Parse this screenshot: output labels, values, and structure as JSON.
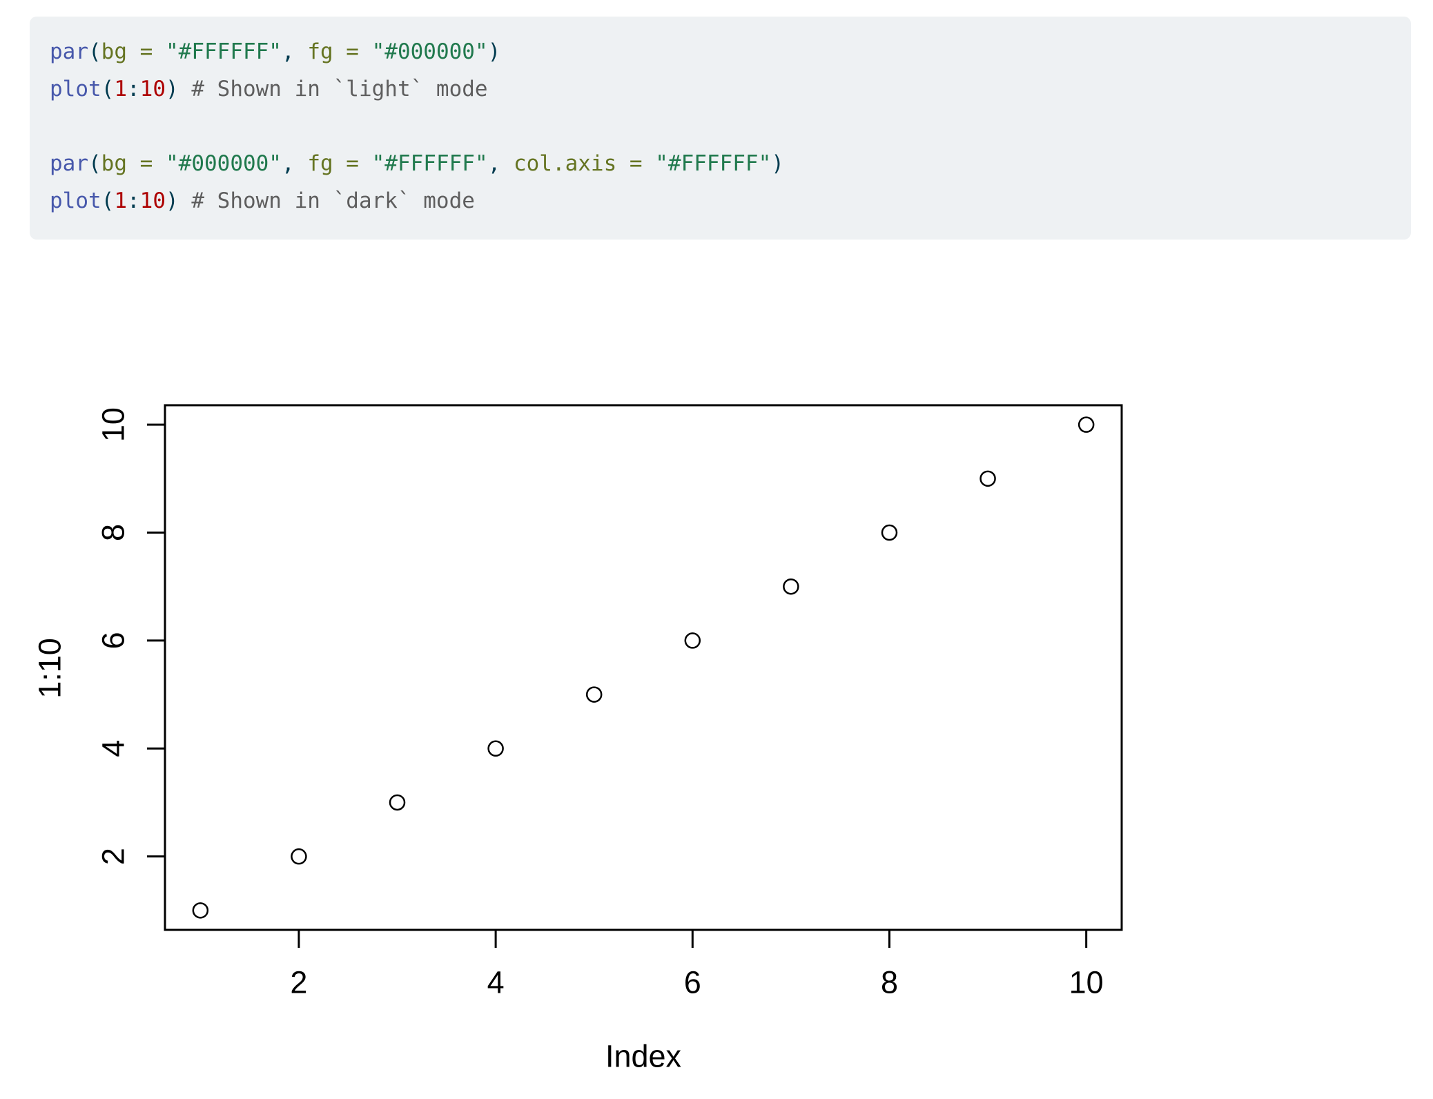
{
  "page": {
    "background": "#FFFFFF"
  },
  "code_block": {
    "background": "#EEF1F3",
    "palette": {
      "fu": "#4758AB",
      "ot": "#003B4F",
      "at": "#657422",
      "st": "#20794D",
      "dv": "#AD0000",
      "co": "#5E5E5E"
    },
    "lines": [
      [
        {
          "c": "fu",
          "t": "par"
        },
        {
          "c": "ot",
          "t": "("
        },
        {
          "c": "at",
          "t": "bg ="
        },
        {
          "c": "ot",
          "t": " "
        },
        {
          "c": "st",
          "t": "\"#FFFFFF\""
        },
        {
          "c": "ot",
          "t": ", "
        },
        {
          "c": "at",
          "t": "fg ="
        },
        {
          "c": "ot",
          "t": " "
        },
        {
          "c": "st",
          "t": "\"#000000\""
        },
        {
          "c": "ot",
          "t": ")"
        }
      ],
      [
        {
          "c": "fu",
          "t": "plot"
        },
        {
          "c": "ot",
          "t": "("
        },
        {
          "c": "dv",
          "t": "1"
        },
        {
          "c": "ot",
          "t": ":"
        },
        {
          "c": "dv",
          "t": "10"
        },
        {
          "c": "ot",
          "t": ") "
        },
        {
          "c": "co",
          "t": "# Shown in `light` mode"
        }
      ],
      [],
      [
        {
          "c": "fu",
          "t": "par"
        },
        {
          "c": "ot",
          "t": "("
        },
        {
          "c": "at",
          "t": "bg ="
        },
        {
          "c": "ot",
          "t": " "
        },
        {
          "c": "st",
          "t": "\"#000000\""
        },
        {
          "c": "ot",
          "t": ", "
        },
        {
          "c": "at",
          "t": "fg ="
        },
        {
          "c": "ot",
          "t": " "
        },
        {
          "c": "st",
          "t": "\"#FFFFFF\""
        },
        {
          "c": "ot",
          "t": ", "
        },
        {
          "c": "at",
          "t": "col.axis ="
        },
        {
          "c": "ot",
          "t": " "
        },
        {
          "c": "st",
          "t": "\"#FFFFFF\""
        },
        {
          "c": "ot",
          "t": ")"
        }
      ],
      [
        {
          "c": "fu",
          "t": "plot"
        },
        {
          "c": "ot",
          "t": "("
        },
        {
          "c": "dv",
          "t": "1"
        },
        {
          "c": "ot",
          "t": ":"
        },
        {
          "c": "dv",
          "t": "10"
        },
        {
          "c": "ot",
          "t": ") "
        },
        {
          "c": "co",
          "t": "# Shown in `dark` mode"
        }
      ]
    ]
  },
  "chart_data": {
    "type": "scatter",
    "title": "",
    "xlabel": "Index",
    "ylabel": "1:10",
    "x": [
      1,
      2,
      3,
      4,
      5,
      6,
      7,
      8,
      9,
      10
    ],
    "y": [
      1,
      2,
      3,
      4,
      5,
      6,
      7,
      8,
      9,
      10
    ],
    "x_ticks": [
      2,
      4,
      6,
      8,
      10
    ],
    "y_ticks": [
      2,
      4,
      6,
      8,
      10
    ],
    "xlim": [
      0.64,
      10.36
    ],
    "ylim": [
      0.64,
      10.36
    ],
    "grid": false,
    "legend": false,
    "marker": "open-circle",
    "colors": {
      "foreground": "#000000",
      "background": "#FFFFFF"
    }
  }
}
